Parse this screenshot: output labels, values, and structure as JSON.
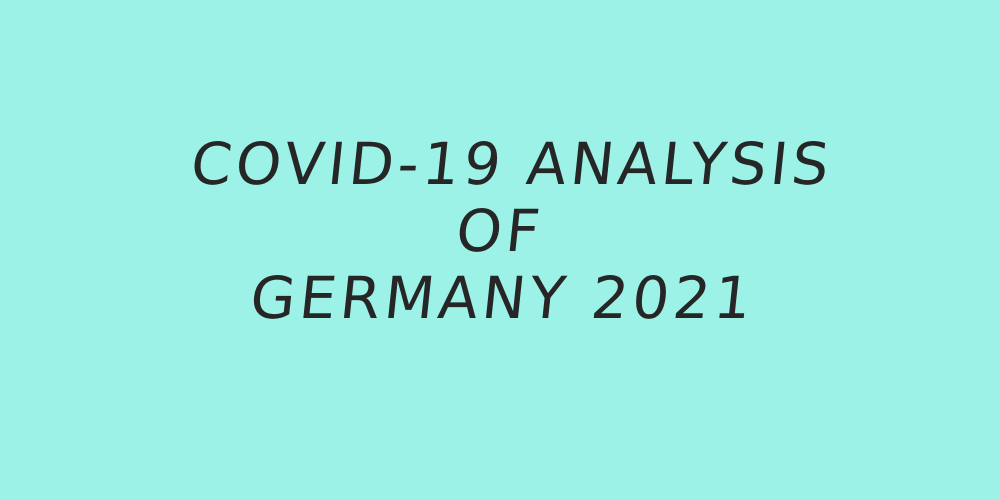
{
  "poster": {
    "background_color": "#9cf2e7",
    "text_color": "#262626",
    "title_lines": [
      "COVID-19 ANALYSIS",
      "OF",
      "GERMANY 2021"
    ]
  }
}
